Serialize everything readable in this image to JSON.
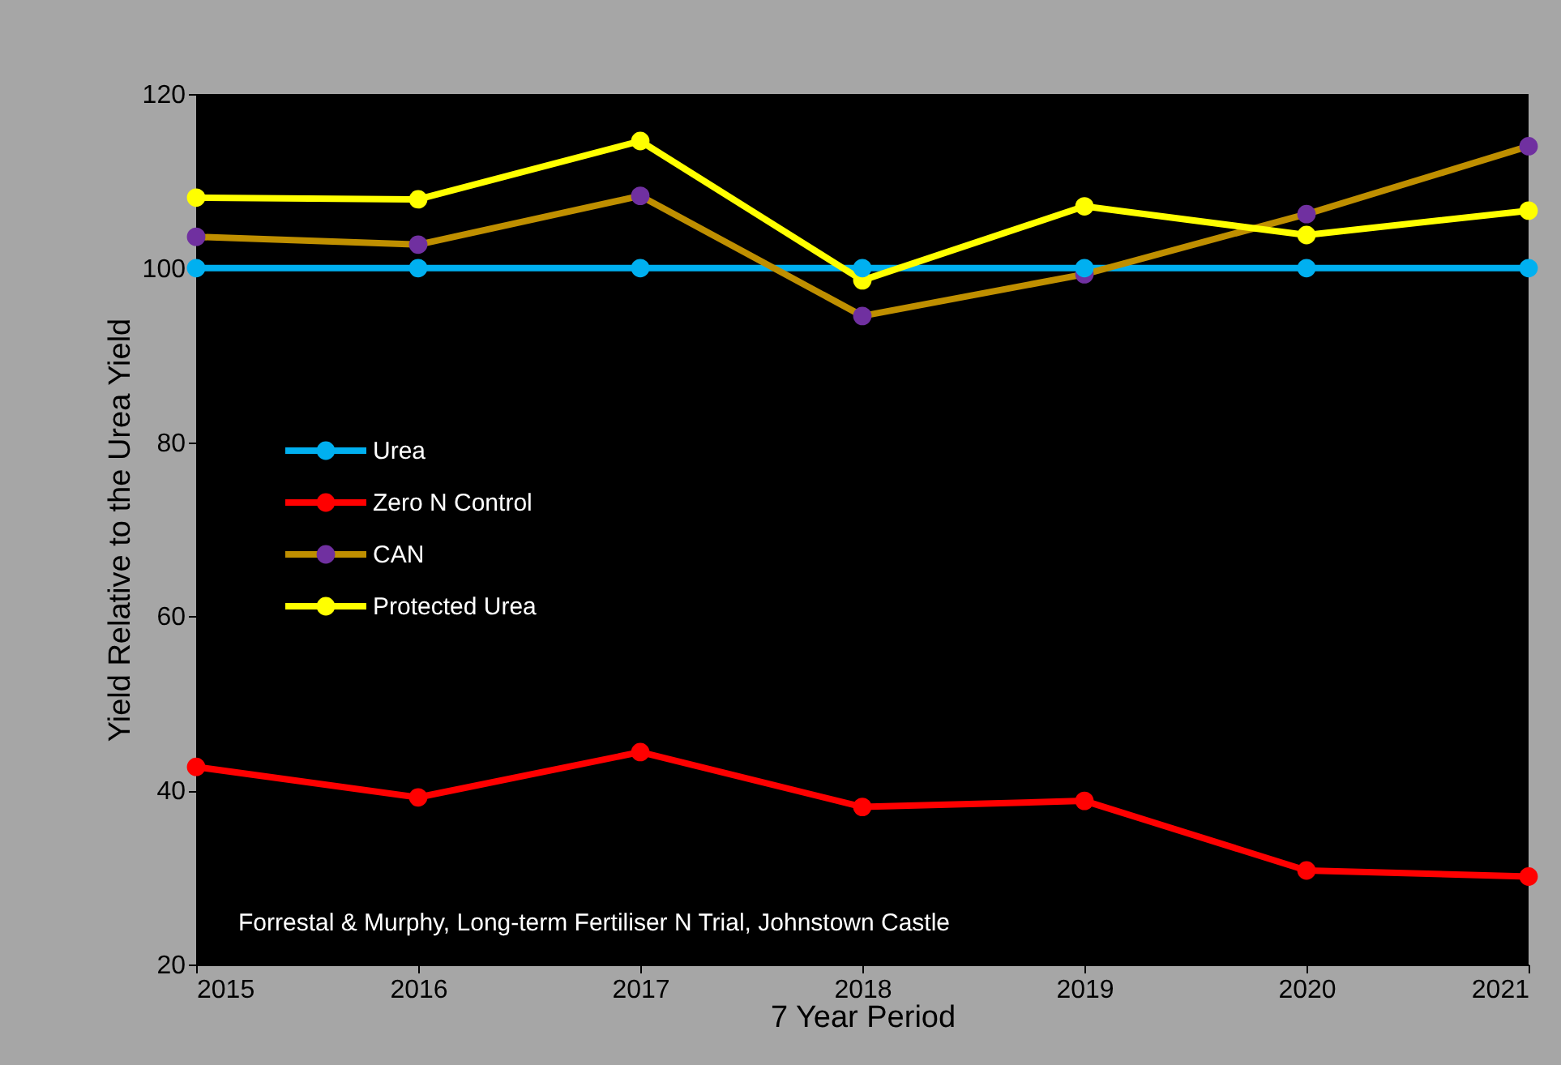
{
  "chart_data": {
    "type": "line",
    "xlabel": "7 Year Period",
    "ylabel": "Yield Relative to the Urea Yield",
    "x": [
      2015,
      2016,
      2017,
      2018,
      2019,
      2020,
      2021
    ],
    "xlim": [
      2015,
      2021
    ],
    "xticks": [
      2015,
      2016,
      2017,
      2018,
      2019,
      2020,
      2021
    ],
    "ylim": [
      20,
      120
    ],
    "yticks": [
      20,
      40,
      60,
      80,
      100,
      120
    ],
    "series": [
      {
        "name": "Urea",
        "color": "#00b0f0",
        "values": [
          100,
          100,
          100,
          100,
          100,
          100,
          100
        ]
      },
      {
        "name": "Zero N Control",
        "color": "#ff0000",
        "values": [
          42.7,
          39.2,
          44.4,
          38.1,
          38.8,
          30.8,
          30.1
        ]
      },
      {
        "name": "CAN",
        "color": "#bf8f00",
        "colors": [
          "#7030a0",
          "#7030a0",
          "#7030a0",
          "#7030a0",
          "#7030a0",
          "#7030a0",
          "#7030a0"
        ],
        "values": [
          103.6,
          102.7,
          108.3,
          94.5,
          99.3,
          106.2,
          114.0
        ]
      },
      {
        "name": "Protected Urea",
        "color": "#ffff00",
        "values": [
          108.1,
          107.9,
          114.6,
          98.6,
          107.1,
          103.8,
          106.6
        ]
      }
    ],
    "legend": "left",
    "marker": "circle",
    "line_style": "solid",
    "annotations": [
      "Forrestal & Murphy, Long-term Fertiliser N Trial, Johnstown Castle"
    ]
  }
}
